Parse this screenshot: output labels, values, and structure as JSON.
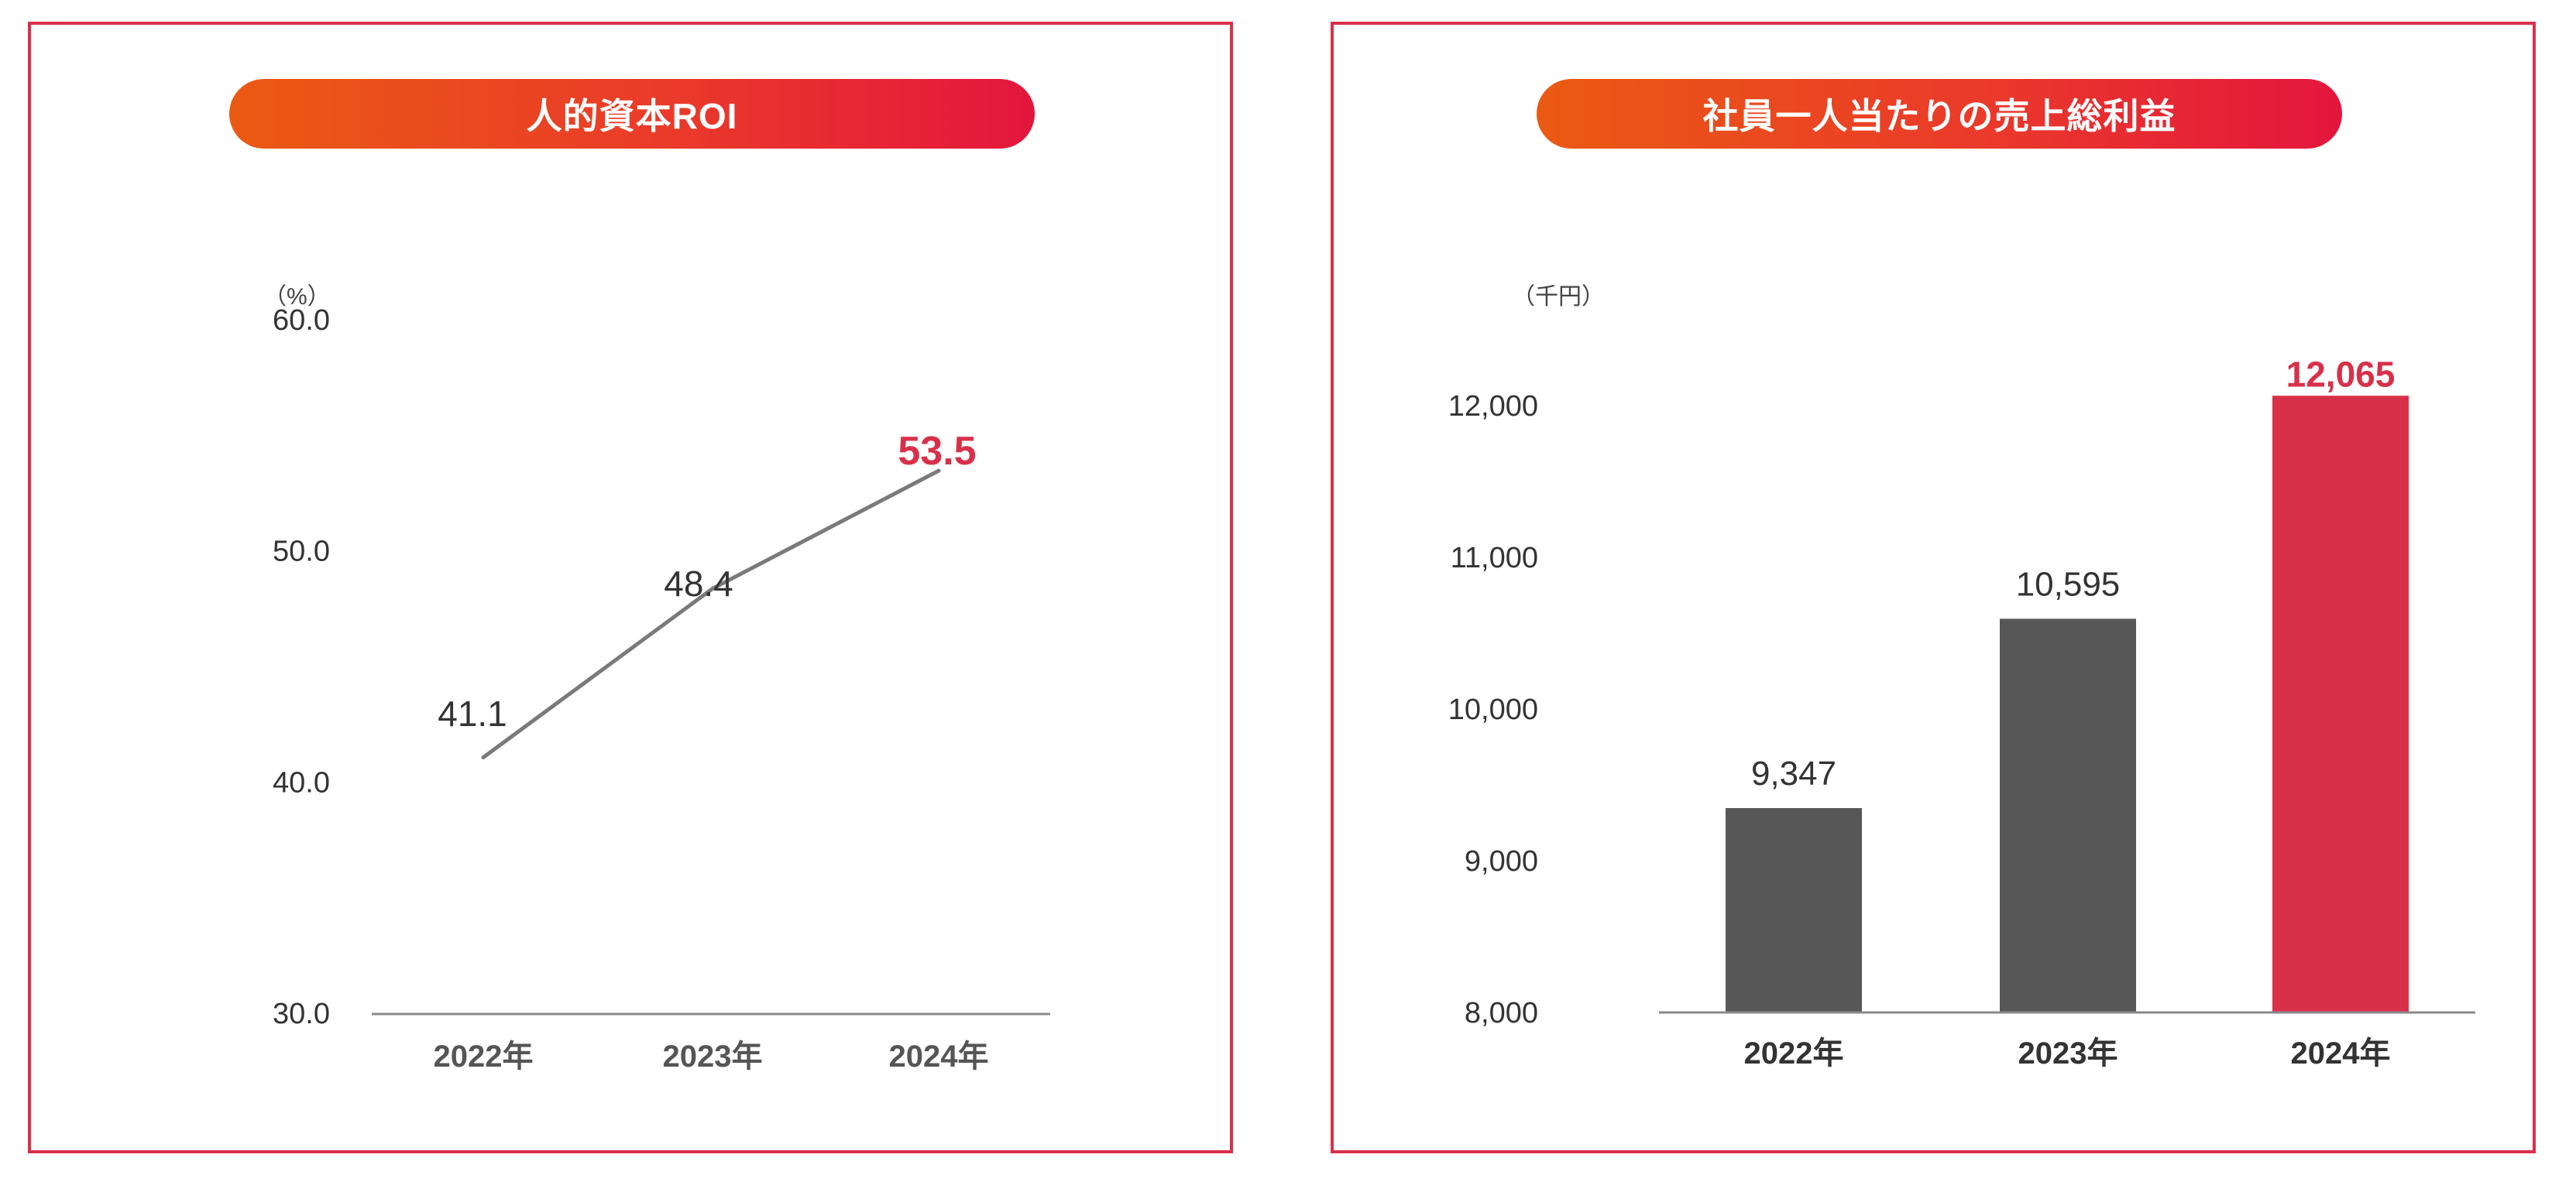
{
  "chart_data": [
    {
      "type": "line",
      "title": "人的資本ROI",
      "unit": "（%）",
      "categories": [
        "2022年",
        "2023年",
        "2024年"
      ],
      "series": [
        {
          "values": [
            41.1,
            48.4,
            53.5
          ]
        }
      ],
      "value_labels": [
        "41.1",
        "48.4",
        "53.5"
      ],
      "yticks": [
        "30.0",
        "40.0",
        "50.0",
        "60.0"
      ],
      "ylim": [
        30,
        60
      ],
      "grid": false,
      "colors": {
        "line": "#7a7a7a",
        "highlight": "#d9304a",
        "text": "#333333"
      }
    },
    {
      "type": "bar",
      "title": "社員一人当たりの売上総利益",
      "unit": "（千円）",
      "categories": [
        "2022年",
        "2023年",
        "2024年"
      ],
      "series": [
        {
          "values": [
            9347,
            10595,
            12065
          ]
        }
      ],
      "value_labels": [
        "9,347",
        "10,595",
        "12,065"
      ],
      "yticks": [
        "8,000",
        "9,000",
        "10,000",
        "11,000",
        "12,000"
      ],
      "ylim": [
        8000,
        12000
      ],
      "grid": false,
      "colors": {
        "bar": "#575757",
        "highlight": "#d9304a",
        "text": "#333333"
      }
    }
  ]
}
